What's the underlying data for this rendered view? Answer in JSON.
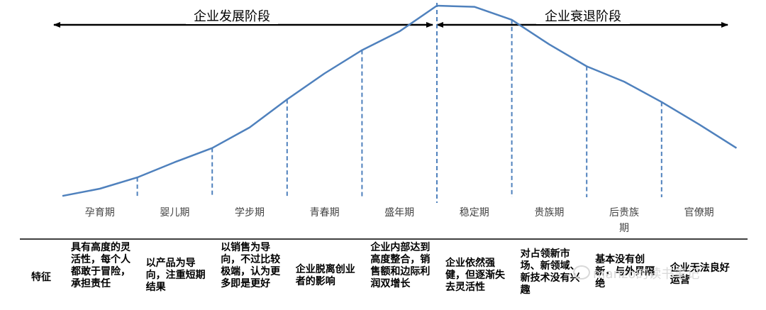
{
  "phases": {
    "growth": "企业发展阶段",
    "decline": "企业衰退阶段"
  },
  "stages": [
    "孕育期",
    "婴儿期",
    "学步期",
    "青春期",
    "盛年期",
    "稳定期",
    "贵族期",
    "后贵族期",
    "官僚期"
  ],
  "curve": {
    "x": [
      0,
      0.5,
      1,
      1.5,
      2,
      2.5,
      3,
      3.5,
      4,
      4.5,
      5,
      5.5,
      6,
      6.5,
      7,
      7.5,
      8,
      8.5,
      9
    ],
    "y": [
      0.3,
      4.1,
      10,
      18,
      25.4,
      36.2,
      50.9,
      64.5,
      76.7,
      86.5,
      100,
      99.4,
      92.6,
      79.7,
      68.2,
      60.2,
      49.5,
      37.8,
      25.4
    ]
  },
  "row_header": "特征",
  "features": [
    "具有高度的灵活性，每个人都敢于冒险，承担责任",
    "以产品为导向，注重短期结果",
    "以销售为导向，不过比较极端，认为更多即是更好",
    "企业脱离创业者的影响",
    "企业内部达到高度整合，销售额和边际利润双增长",
    "企业依然强健，但逐渐失去灵活性",
    "对占领新市场、新领域、新技术没有兴趣",
    "基本没有创新，与外界隔绝",
    "企业无法良好运营"
  ],
  "watermark": "manzo的读书笔记",
  "colors": {
    "curve": "#4f81bd",
    "arrow": "#000000",
    "divider": "#000000"
  }
}
